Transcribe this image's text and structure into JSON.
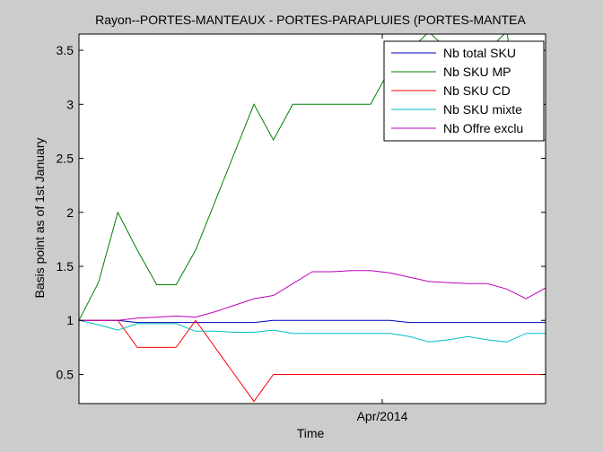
{
  "chart_data": {
    "type": "line",
    "title": "Rayon--PORTES-MANTEAUX - PORTES-PARAPLUIES (PORTES-MANTEA",
    "xlabel": "Time",
    "ylabel": "Basis point as of 1st January",
    "xlim": [
      0,
      24
    ],
    "ylim": [
      0.23,
      3.65
    ],
    "yticks": [
      0.5,
      1,
      1.5,
      2,
      2.5,
      3,
      3.5
    ],
    "xtick_labels": [
      {
        "x": 15.6,
        "label": "Apr/2014"
      }
    ],
    "grid": false,
    "legend_position": "top-right",
    "x": [
      0,
      1,
      2,
      3,
      4,
      5,
      6,
      7,
      8,
      9,
      10,
      11,
      12,
      13,
      14,
      15,
      16,
      17,
      18,
      19,
      20,
      21,
      22,
      23,
      24
    ],
    "series": [
      {
        "name": "Nb total SKU",
        "color": "#0000bf",
        "values": [
          1,
          1,
          1,
          0.98,
          0.98,
          0.98,
          0.98,
          0.98,
          0.98,
          0.98,
          1,
          1,
          1,
          1,
          1,
          1,
          1,
          0.98,
          0.98,
          0.98,
          0.98,
          0.98,
          0.98,
          0.98,
          0.98
        ]
      },
      {
        "name": "Nb SKU MP",
        "color": "#007f00",
        "values": [
          1,
          1.35,
          2,
          1.65,
          1.33,
          1.33,
          1.65,
          2.1,
          2.55,
          3,
          2.67,
          3,
          3,
          3,
          3,
          3,
          3.33,
          3.5,
          3.67,
          3.5,
          3.33,
          3.5,
          3.67,
          2.67,
          2.67
        ]
      },
      {
        "name": "Nb SKU CD",
        "color": "#ff0000",
        "values": [
          1,
          1,
          1,
          0.75,
          0.75,
          0.75,
          1,
          0.75,
          0.5,
          0.25,
          0.5,
          0.5,
          0.5,
          0.5,
          0.5,
          0.5,
          0.5,
          0.5,
          0.5,
          0.5,
          0.5,
          0.5,
          0.5,
          0.5,
          0.5
        ]
      },
      {
        "name": "Nb SKU mixte",
        "color": "#00bfbf",
        "values": [
          1,
          0.96,
          0.91,
          0.97,
          0.97,
          0.97,
          0.9,
          0.9,
          0.89,
          0.89,
          0.91,
          0.88,
          0.88,
          0.88,
          0.88,
          0.88,
          0.88,
          0.85,
          0.8,
          0.82,
          0.85,
          0.82,
          0.8,
          0.88,
          0.88
        ]
      },
      {
        "name": "Nb Offre exclu",
        "color": "#bf00bf",
        "values": [
          1,
          1,
          1,
          1.02,
          1.03,
          1.04,
          1.03,
          1.08,
          1.14,
          1.2,
          1.23,
          1.34,
          1.45,
          1.45,
          1.46,
          1.46,
          1.44,
          1.4,
          1.36,
          1.35,
          1.34,
          1.34,
          1.29,
          1.2,
          1.3
        ]
      }
    ]
  }
}
